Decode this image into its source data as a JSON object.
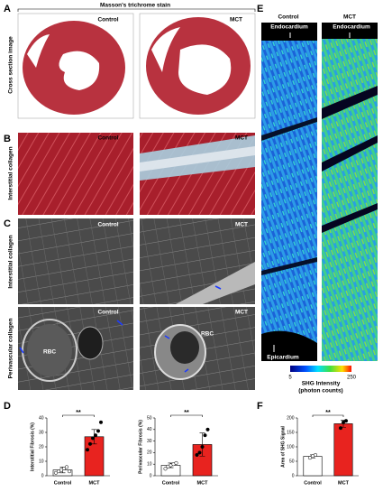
{
  "panel_letters": [
    "A",
    "B",
    "C",
    "D",
    "E",
    "F"
  ],
  "panel_a": {
    "header": "Masson's trichrome stain",
    "row_label": "Cross section image",
    "control": "Control",
    "mct": "MCT"
  },
  "panel_b": {
    "row_label": "Interstitial collagen",
    "control": "Control",
    "mct": "MCT"
  },
  "panel_c": {
    "row_labels": [
      "Interstitial collagen",
      "Perivascular collagen"
    ],
    "control": "Control",
    "mct": "MCT",
    "rbc": "RBC"
  },
  "panel_e": {
    "control": "Control",
    "mct": "MCT",
    "endocardium": "Endocardium",
    "epicardium": "Epicardium",
    "colorbar": {
      "ticks": [
        5,
        250
      ],
      "label": "SHG Intensity",
      "unit": "(photon counts)"
    }
  },
  "chart_data": [
    {
      "type": "bar",
      "ylabel": "Interstitial Fibrosis (%)",
      "categories": [
        "Control",
        "MCT"
      ],
      "values": [
        4,
        27
      ],
      "errors": [
        2,
        5
      ],
      "colors": [
        "#ffffff",
        "#e8231f"
      ],
      "points": [
        [
          2,
          3,
          4,
          5,
          6,
          3
        ],
        [
          18,
          22,
          26,
          28,
          31,
          37
        ]
      ],
      "ylim": [
        0,
        40
      ],
      "yticks": [
        0,
        10,
        20,
        30,
        40
      ],
      "significance": "**"
    },
    {
      "type": "bar",
      "ylabel": "Perivascular Fibrosis (%)",
      "categories": [
        "Control",
        "MCT"
      ],
      "values": [
        9,
        27
      ],
      "errors": [
        2,
        10
      ],
      "colors": [
        "#ffffff",
        "#e8231f"
      ],
      "points": [
        [
          6,
          8,
          9,
          10,
          11
        ],
        [
          18,
          20,
          25,
          35,
          40
        ]
      ],
      "ylim": [
        0,
        50
      ],
      "yticks": [
        0,
        10,
        20,
        30,
        40,
        50
      ],
      "significance": "**"
    },
    {
      "type": "bar",
      "ylabel": "Area of SHG Signal",
      "categories": [
        "Control",
        "MCT"
      ],
      "values": [
        67,
        180
      ],
      "errors": [
        5,
        12
      ],
      "colors": [
        "#ffffff",
        "#e8231f"
      ],
      "points": [
        [
          62,
          68,
          72
        ],
        [
          165,
          185,
          190
        ]
      ],
      "ylim": [
        0,
        200
      ],
      "yticks": [
        0,
        50,
        100,
        150,
        200
      ],
      "significance": "**"
    }
  ]
}
